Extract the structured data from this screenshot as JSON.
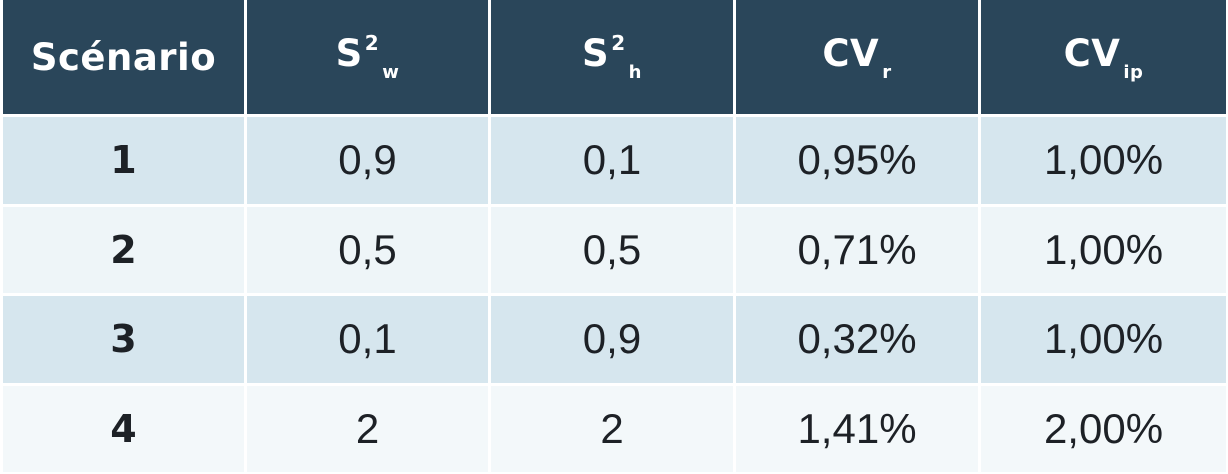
{
  "table": {
    "headers": [
      {
        "base": "Scénario",
        "sup": "",
        "sub": ""
      },
      {
        "base": "S",
        "sup": "2",
        "sub": "w"
      },
      {
        "base": "S",
        "sup": "2",
        "sub": "h"
      },
      {
        "base": "CV",
        "sup": "",
        "sub": "r"
      },
      {
        "base": "CV",
        "sup": "",
        "sub": "ip"
      }
    ],
    "rows": [
      {
        "scenario": "1",
        "s2w": "0,9",
        "s2h": "0,1",
        "cvr": "0,95%",
        "cvip": "1,00%"
      },
      {
        "scenario": "2",
        "s2w": "0,5",
        "s2h": "0,5",
        "cvr": "0,71%",
        "cvip": "1,00%"
      },
      {
        "scenario": "3",
        "s2w": "0,1",
        "s2h": "0,9",
        "cvr": "0,32%",
        "cvip": "1,00%"
      },
      {
        "scenario": "4",
        "s2w": "2",
        "s2h": "2",
        "cvr": "1,41%",
        "cvip": "2,00%"
      }
    ]
  },
  "colors": {
    "header_bg": "#2a465a",
    "row_odd_bg": "#d6e6ee",
    "row_even_bg": "#eef5f8",
    "text": "#1d2126"
  }
}
